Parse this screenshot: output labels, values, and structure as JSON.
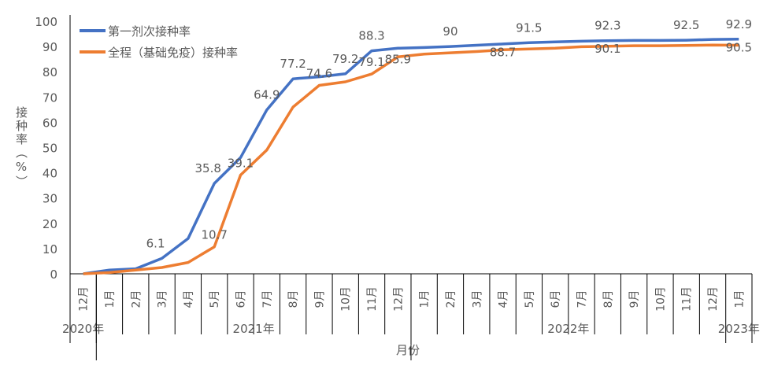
{
  "chart_data": {
    "type": "line",
    "title": "",
    "xlabel": "月份",
    "ylabel": "接种率（%）",
    "ylim": [
      0,
      100
    ],
    "yticks": [
      0,
      10,
      20,
      30,
      40,
      50,
      60,
      70,
      80,
      90,
      100
    ],
    "grid": false,
    "legend_position": "top-left",
    "categories": [
      "12月",
      "1月",
      "2月",
      "3月",
      "4月",
      "5月",
      "6月",
      "7月",
      "8月",
      "9月",
      "10月",
      "11月",
      "12月",
      "1月",
      "2月",
      "3月",
      "4月",
      "5月",
      "6月",
      "7月",
      "8月",
      "9月",
      "10月",
      "11月",
      "12月",
      "1月"
    ],
    "year_groups": [
      {
        "label": "2020年",
        "count": 1
      },
      {
        "label": "2021年",
        "count": 12
      },
      {
        "label": "2022年",
        "count": 12
      },
      {
        "label": "2023年",
        "count": 1
      }
    ],
    "series": [
      {
        "name": "第一剂次接种率",
        "color": "#4472C4",
        "values": [
          0,
          1.5,
          2,
          6.1,
          14,
          35.8,
          46,
          64.9,
          77.2,
          78,
          79.2,
          88.3,
          89.3,
          89.6,
          90,
          90.5,
          91,
          91.5,
          91.8,
          92.1,
          92.3,
          92.4,
          92.4,
          92.5,
          92.8,
          92.9
        ],
        "data_labels": [
          null,
          null,
          null,
          "6.1",
          null,
          "35.8",
          null,
          "64.9",
          "77.2",
          null,
          "79.2",
          "88.3",
          null,
          null,
          "90",
          null,
          null,
          "91.5",
          null,
          null,
          "92.3",
          null,
          null,
          "92.5",
          null,
          "92.9"
        ]
      },
      {
        "name": "全程（基础免疫）接种率",
        "color": "#ED7D31",
        "values": [
          0,
          0.5,
          1.5,
          2.5,
          4.5,
          10.7,
          39.1,
          49,
          66,
          74.6,
          76,
          79.1,
          85.9,
          87,
          87.5,
          88,
          88.7,
          89,
          89.3,
          89.9,
          90.1,
          90.3,
          90.3,
          90.4,
          90.6,
          90.5
        ],
        "data_labels": [
          null,
          null,
          null,
          null,
          null,
          "10.7",
          "39.1",
          null,
          null,
          "74.6",
          null,
          "79.1",
          "85.9",
          null,
          null,
          null,
          "88.7",
          null,
          null,
          null,
          "90.1",
          null,
          null,
          null,
          null,
          "90.5"
        ]
      }
    ]
  }
}
